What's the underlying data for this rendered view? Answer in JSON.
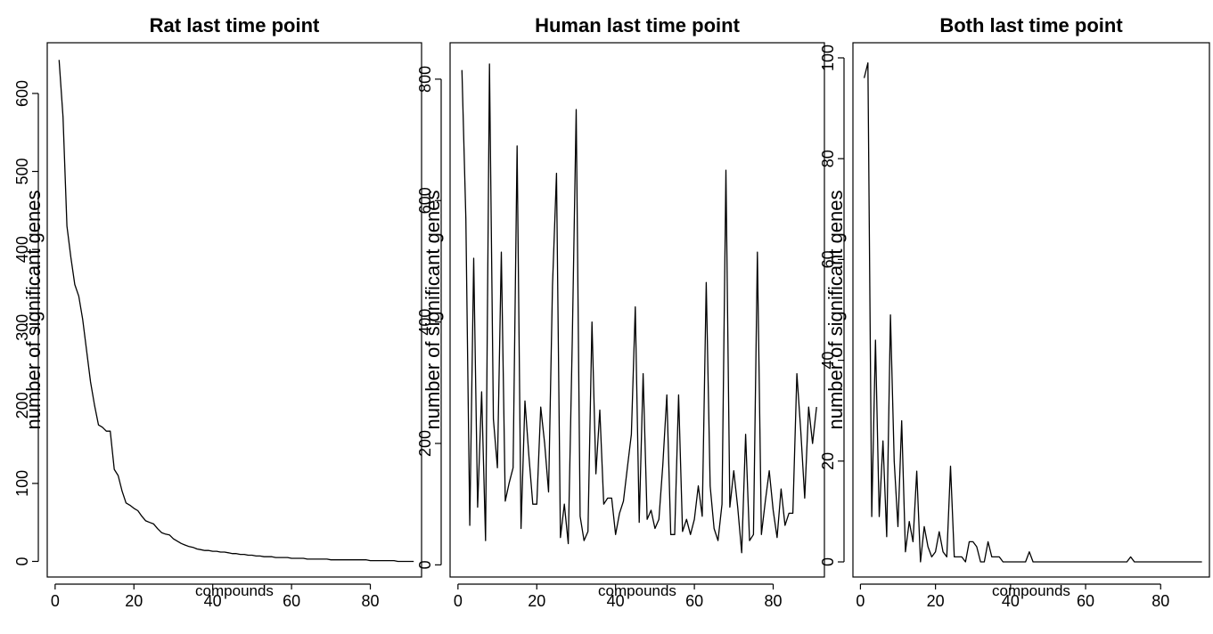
{
  "chart_data": [
    {
      "type": "line",
      "title": "Rat last time point",
      "xlabel": "compounds",
      "ylabel": "number of significant genes",
      "xlim": [
        -2,
        93
      ],
      "ylim": [
        -20,
        665
      ],
      "xticks": [
        0,
        20,
        40,
        60,
        80
      ],
      "yticks": [
        0,
        100,
        200,
        300,
        400,
        500,
        600
      ],
      "x": [
        1,
        2,
        3,
        4,
        5,
        6,
        7,
        8,
        9,
        10,
        11,
        12,
        13,
        14,
        15,
        16,
        17,
        18,
        19,
        20,
        21,
        22,
        23,
        24,
        25,
        26,
        27,
        28,
        29,
        30,
        31,
        32,
        33,
        34,
        35,
        36,
        37,
        38,
        39,
        40,
        41,
        42,
        43,
        44,
        45,
        46,
        47,
        48,
        49,
        50,
        51,
        52,
        53,
        54,
        55,
        56,
        57,
        58,
        59,
        60,
        61,
        62,
        63,
        64,
        65,
        66,
        67,
        68,
        69,
        70,
        71,
        72,
        73,
        74,
        75,
        76,
        77,
        78,
        79,
        80,
        81,
        82,
        83,
        84,
        85,
        86,
        87,
        88,
        89,
        90,
        91
      ],
      "values": [
        643,
        570,
        430,
        390,
        355,
        340,
        310,
        270,
        230,
        200,
        175,
        172,
        167,
        167,
        118,
        110,
        90,
        75,
        72,
        68,
        65,
        58,
        52,
        50,
        48,
        42,
        37,
        35,
        34,
        29,
        26,
        23,
        21,
        19,
        18,
        16,
        15,
        14,
        14,
        13,
        13,
        12,
        12,
        11,
        10,
        10,
        9,
        9,
        8,
        8,
        7,
        7,
        6,
        6,
        6,
        5,
        5,
        5,
        5,
        4,
        4,
        4,
        4,
        3,
        3,
        3,
        3,
        3,
        3,
        2,
        2,
        2,
        2,
        2,
        2,
        2,
        2,
        2,
        2,
        1,
        1,
        1,
        1,
        1,
        1,
        1,
        0,
        0,
        0,
        0,
        0
      ]
    },
    {
      "type": "line",
      "title": "Human last time point",
      "xlabel": "compounds",
      "ylabel": "number of significant genes",
      "xlim": [
        -2,
        93
      ],
      "ylim": [
        -20,
        860
      ],
      "xticks": [
        0,
        20,
        40,
        60,
        80
      ],
      "yticks": [
        0,
        200,
        400,
        600,
        800
      ],
      "x": [
        1,
        2,
        3,
        4,
        5,
        6,
        7,
        8,
        9,
        10,
        11,
        12,
        13,
        14,
        15,
        16,
        17,
        18,
        19,
        20,
        21,
        22,
        23,
        24,
        25,
        26,
        27,
        28,
        29,
        30,
        31,
        32,
        33,
        34,
        35,
        36,
        37,
        38,
        39,
        40,
        41,
        42,
        43,
        44,
        45,
        46,
        47,
        48,
        49,
        50,
        51,
        52,
        53,
        54,
        55,
        56,
        57,
        58,
        59,
        60,
        61,
        62,
        63,
        64,
        65,
        66,
        67,
        68,
        69,
        70,
        71,
        72,
        73,
        74,
        75,
        76,
        77,
        78,
        79,
        80,
        81,
        82,
        83,
        84,
        85,
        86,
        87,
        88,
        89,
        90,
        91
      ],
      "values": [
        815,
        570,
        65,
        505,
        95,
        285,
        40,
        825,
        240,
        160,
        515,
        105,
        135,
        160,
        690,
        60,
        270,
        180,
        100,
        100,
        260,
        200,
        120,
        460,
        645,
        45,
        100,
        35,
        370,
        750,
        80,
        40,
        55,
        400,
        150,
        255,
        100,
        110,
        110,
        50,
        85,
        105,
        160,
        215,
        425,
        70,
        315,
        75,
        90,
        60,
        75,
        165,
        280,
        50,
        50,
        280,
        55,
        75,
        50,
        75,
        130,
        80,
        465,
        130,
        60,
        40,
        100,
        650,
        95,
        155,
        95,
        20,
        215,
        40,
        50,
        515,
        50,
        105,
        155,
        90,
        45,
        125,
        65,
        85,
        85,
        315,
        220,
        110,
        260,
        200,
        260
      ]
    },
    {
      "type": "line",
      "title": "Both last time point",
      "xlabel": "compounds",
      "ylabel": "number of significant genes",
      "xlim": [
        -2,
        93
      ],
      "ylim": [
        -3,
        103
      ],
      "xticks": [
        0,
        20,
        40,
        60,
        80
      ],
      "yticks": [
        0,
        20,
        40,
        60,
        80,
        100
      ],
      "x": [
        1,
        2,
        3,
        4,
        5,
        6,
        7,
        8,
        9,
        10,
        11,
        12,
        13,
        14,
        15,
        16,
        17,
        18,
        19,
        20,
        21,
        22,
        23,
        24,
        25,
        26,
        27,
        28,
        29,
        30,
        31,
        32,
        33,
        34,
        35,
        36,
        37,
        38,
        39,
        40,
        41,
        42,
        43,
        44,
        45,
        46,
        47,
        48,
        49,
        50,
        51,
        52,
        53,
        54,
        55,
        56,
        57,
        58,
        59,
        60,
        61,
        62,
        63,
        64,
        65,
        66,
        67,
        68,
        69,
        70,
        71,
        72,
        73,
        74,
        75,
        76,
        77,
        78,
        79,
        80,
        81,
        82,
        83,
        84,
        85,
        86,
        87,
        88,
        89,
        90,
        91
      ],
      "values": [
        96,
        99,
        9,
        44,
        9,
        24,
        5,
        49,
        20,
        7,
        28,
        2,
        8,
        4,
        18,
        0,
        7,
        3,
        1,
        2,
        6,
        2,
        1,
        19,
        1,
        1,
        1,
        0,
        4,
        4,
        3,
        0,
        0,
        4,
        1,
        1,
        1,
        0,
        0,
        0,
        0,
        0,
        0,
        0,
        2,
        0,
        0,
        0,
        0,
        0,
        0,
        0,
        0,
        0,
        0,
        0,
        0,
        0,
        0,
        0,
        0,
        0,
        0,
        0,
        0,
        0,
        0,
        0,
        0,
        0,
        0,
        1,
        0,
        0,
        0,
        0,
        0,
        0,
        0,
        0,
        0,
        0,
        0,
        0,
        0,
        0,
        0,
        0,
        0,
        0,
        0
      ]
    }
  ]
}
